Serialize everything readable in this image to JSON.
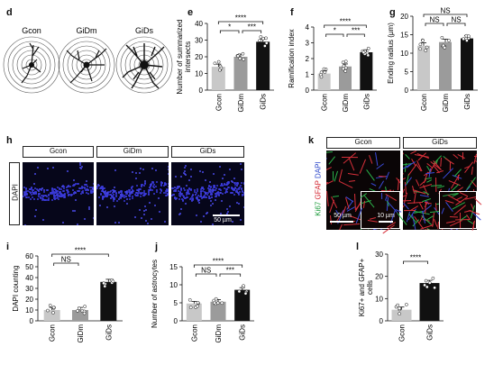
{
  "panels": {
    "d": {
      "letter": "d",
      "labels": [
        "Gcon",
        "GiDm",
        "GiDs"
      ]
    },
    "e": {
      "letter": "e"
    },
    "f": {
      "letter": "f"
    },
    "g": {
      "letter": "g"
    },
    "h": {
      "letter": "h",
      "headers": [
        "Gcon",
        "GiDm",
        "GiDs"
      ],
      "side_label": "DAPI",
      "scale_bar": "50 µm"
    },
    "i": {
      "letter": "i"
    },
    "j": {
      "letter": "j"
    },
    "k": {
      "letter": "k",
      "headers": [
        "Gcon",
        "GiDs"
      ],
      "side_labels": [
        "Ki67",
        "GFAP",
        "DAPI"
      ],
      "scale_bar_main": "50 µm",
      "scale_bar_inset": "10 µm"
    },
    "l": {
      "letter": "l"
    }
  },
  "chart_data": [
    {
      "id": "e",
      "type": "bar",
      "categories": [
        "Gcon",
        "GiDm",
        "GiDs"
      ],
      "values": [
        14,
        20,
        29
      ],
      "ylabel": "Number of summarized intersects",
      "ylim": [
        0,
        40
      ],
      "yticks": [
        0,
        10,
        20,
        30,
        40
      ],
      "bar_colors": [
        "#c8c8c8",
        "#9b9b9b",
        "#111111"
      ],
      "significance": [
        {
          "from": 0,
          "to": 2,
          "label": "****"
        },
        {
          "from": 0,
          "to": 1,
          "label": "*"
        },
        {
          "from": 1,
          "to": 2,
          "label": "***"
        }
      ]
    },
    {
      "id": "f",
      "type": "bar",
      "categories": [
        "Gcon",
        "GiDm",
        "GiDs"
      ],
      "values": [
        1.05,
        1.5,
        2.4
      ],
      "ylabel": "Ramification index",
      "ylim": [
        0,
        4
      ],
      "yticks": [
        0,
        1,
        2,
        3,
        4
      ],
      "bar_colors": [
        "#c8c8c8",
        "#9b9b9b",
        "#111111"
      ],
      "significance": [
        {
          "from": 0,
          "to": 2,
          "label": "****"
        },
        {
          "from": 0,
          "to": 1,
          "label": "*"
        },
        {
          "from": 1,
          "to": 2,
          "label": "***"
        }
      ]
    },
    {
      "id": "g",
      "type": "bar",
      "categories": [
        "Gcon",
        "GiDm",
        "GiDs"
      ],
      "values": [
        12,
        13,
        14
      ],
      "ylabel": "Ending radius (µm)",
      "ylim": [
        0,
        20
      ],
      "yticks": [
        0,
        5,
        10,
        15,
        20
      ],
      "bar_colors": [
        "#c8c8c8",
        "#9b9b9b",
        "#111111"
      ],
      "significance": [
        {
          "from": 0,
          "to": 2,
          "label": "NS"
        },
        {
          "from": 0,
          "to": 1,
          "label": "NS"
        },
        {
          "from": 1,
          "to": 2,
          "label": "NS"
        }
      ]
    },
    {
      "id": "i",
      "type": "bar",
      "categories": [
        "Gcon",
        "GiDm",
        "GiDs"
      ],
      "values": [
        10,
        10,
        36
      ],
      "ylabel": "DAPI counting",
      "ylim": [
        0,
        60
      ],
      "yticks": [
        0,
        10,
        20,
        30,
        40,
        50,
        60
      ],
      "bar_colors": [
        "#c8c8c8",
        "#9b9b9b",
        "#111111"
      ],
      "significance": [
        {
          "from": 0,
          "to": 2,
          "label": "****"
        },
        {
          "from": 0,
          "to": 1,
          "label": "NS"
        }
      ]
    },
    {
      "id": "j",
      "type": "bar",
      "categories": [
        "Gcon",
        "GiDm",
        "GiDs"
      ],
      "values": [
        4.8,
        5.3,
        8.6
      ],
      "ylabel": "Number of astrocytes",
      "ylim": [
        0,
        15
      ],
      "yticks": [
        0,
        5,
        10,
        15
      ],
      "bar_colors": [
        "#c8c8c8",
        "#9b9b9b",
        "#111111"
      ],
      "significance": [
        {
          "from": 0,
          "to": 2,
          "label": "****"
        },
        {
          "from": 0,
          "to": 1,
          "label": "NS"
        },
        {
          "from": 1,
          "to": 2,
          "label": "***"
        }
      ]
    },
    {
      "id": "l",
      "type": "bar",
      "categories": [
        "Gcon",
        "GiDs"
      ],
      "values": [
        5,
        17
      ],
      "ylabel": "Ki67+ and GFAP+ cells",
      "ylim": [
        0,
        30
      ],
      "yticks": [
        0,
        10,
        20,
        30
      ],
      "bar_colors": [
        "#c8c8c8",
        "#111111"
      ],
      "significance": [
        {
          "from": 0,
          "to": 1,
          "label": "****"
        }
      ]
    }
  ]
}
